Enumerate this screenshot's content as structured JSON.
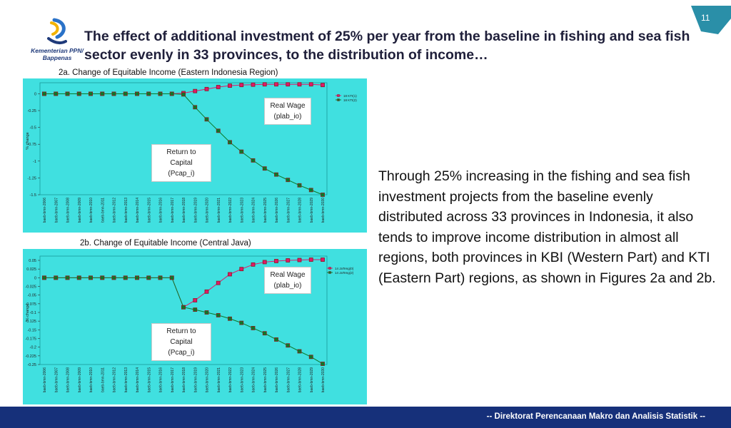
{
  "page": {
    "number": "11",
    "title": "The effect of additional investment of 25% per year from the baseline in fishing and sea fish sector evenly in 33 provinces, to the distribution of income…",
    "logo_text": "Kementerian PPN/ Bappenas",
    "footer": "-- Direktorat Perencanaan Makro dan Analisis Statistik --",
    "body_text": "Through 25% increasing in the fishing and sea fish investment projects from the baseline evenly distributed across 33 provinces in Indonesia, it also tends to improve income distribution in almost all regions, both provinces in KBI (Western Part) and KTI (Eastern Part) regions, as shown in Figures 2a and 2b."
  },
  "colors": {
    "chart_bg": "#40e0e0",
    "real_wage_series": "#e0186a",
    "return_capital_series": "#0a7a2a",
    "marker": "#8a1f1f",
    "footer": "#16307a",
    "page_badge": "#2a8fa8"
  },
  "chart_data": [
    {
      "type": "line",
      "caption": "2a. Change of Equitable Income (Eastern Indonesia Region)",
      "ylabel": "% change",
      "ylim": [
        -1.5,
        0.1
      ],
      "yticks": [
        "0",
        "-0.25",
        "-0.5",
        "-0.75",
        "-1",
        "-1.25",
        "-1.5"
      ],
      "ytick_values": [
        0,
        -0.25,
        -0.5,
        -0.75,
        -1,
        -1.25,
        -1.5
      ],
      "categories": [
        "baeb-bmn-2006",
        "baeb-bmn-2007",
        "baeb-bmn-2008",
        "baeb-bmn-2009",
        "baeb-bmn-2010",
        "baeb-bmn-2011",
        "baeb-bmn-2012",
        "baeb-bmn-2013",
        "baeb-bmn-2014",
        "baeb-bmn-2015",
        "baeb-bmn-2016",
        "baeb-bmn-2017",
        "baeb-bmn-2018",
        "baeb-bmn-2019",
        "baeb-bmn-2020",
        "baeb-bmn-2021",
        "baeb-bmn-2022",
        "baeb-bmn-2023",
        "baeb-bmn-2024",
        "baeb-bmn-2025",
        "baeb-bmn-2026",
        "baeb-bmn-2027",
        "baeb-bmn-2028",
        "baeb-bmn-2029",
        "baeb-bmn-2030"
      ],
      "legend": [
        "18 KTI(1)",
        "18 KTI(2)"
      ],
      "annotations": [
        "Real Wage (plab_io)",
        "Return to Capital (Pcap_i)"
      ],
      "series": [
        {
          "name": "18 KTI(1)",
          "values": [
            0,
            0,
            0,
            0,
            0,
            0,
            0,
            0,
            0,
            0,
            0,
            0,
            0.01,
            0.04,
            0.07,
            0.1,
            0.12,
            0.13,
            0.135,
            0.14,
            0.14,
            0.14,
            0.14,
            0.14,
            0.13
          ]
        },
        {
          "name": "18 KTI(2)",
          "values": [
            0,
            0,
            0,
            0,
            0,
            0,
            0,
            0,
            0,
            0,
            0,
            0,
            -0.01,
            -0.2,
            -0.38,
            -0.55,
            -0.72,
            -0.86,
            -0.99,
            -1.11,
            -1.2,
            -1.28,
            -1.36,
            -1.43,
            -1.5
          ]
        }
      ]
    },
    {
      "type": "line",
      "caption": "2b. Change of Equitable Income (Central Java)",
      "ylabel": "% change",
      "ylim": [
        -0.25,
        0.05
      ],
      "yticks": [
        "0.05",
        "0.025",
        "0",
        "-0.025",
        "-0.05",
        "-0.075",
        "-0.1",
        "-0.125",
        "-0.15",
        "-0.175",
        "-0.2",
        "-0.225",
        "-0.25"
      ],
      "ytick_values": [
        0.05,
        0.025,
        0,
        -0.025,
        -0.05,
        -0.075,
        -0.1,
        -0.125,
        -0.15,
        -0.175,
        -0.2,
        -0.225,
        -0.25
      ],
      "categories": [
        "baeb-bmn-2006",
        "baeb-bmn-2007",
        "baeb-bmn-2008",
        "baeb-bmn-2009",
        "baeb-bmn-2010",
        "baeb-bmn-2011",
        "baeb-bmn-2012",
        "baeb-bmn-2013",
        "baeb-bmn-2014",
        "baeb-bmn-2015",
        "baeb-bmn-2016",
        "baeb-bmn-2017",
        "baeb-bmn-2018",
        "baeb-bmn-2019",
        "baeb-bmn-2020",
        "baeb-bmn-2021",
        "baeb-bmn-2022",
        "baeb-bmn-2023",
        "baeb-bmn-2024",
        "baeb-bmn-2025",
        "baeb-bmn-2026",
        "baeb-bmn-2027",
        "baeb-bmn-2028",
        "baeb-bmn-2029",
        "baeb-bmn-2030"
      ],
      "legend": [
        "14 JaTeng(0)",
        "14 JaTeng(2)"
      ],
      "annotations": [
        "Real Wage (plab_io)",
        "Return to Capital (Pcap_i)"
      ],
      "series": [
        {
          "name": "14 JaTeng(0)",
          "values": [
            0,
            0,
            0,
            0,
            0,
            0,
            0,
            0,
            0,
            0,
            0,
            0,
            -0.085,
            -0.065,
            -0.04,
            -0.015,
            0.01,
            0.025,
            0.038,
            0.045,
            0.048,
            0.05,
            0.051,
            0.052,
            0.052
          ]
        },
        {
          "name": "14 JaTeng(2)",
          "values": [
            0,
            0,
            0,
            0,
            0,
            0,
            0,
            0,
            0,
            0,
            0,
            0,
            -0.085,
            -0.092,
            -0.1,
            -0.108,
            -0.118,
            -0.13,
            -0.145,
            -0.16,
            -0.178,
            -0.195,
            -0.212,
            -0.228,
            -0.248
          ]
        }
      ]
    }
  ]
}
